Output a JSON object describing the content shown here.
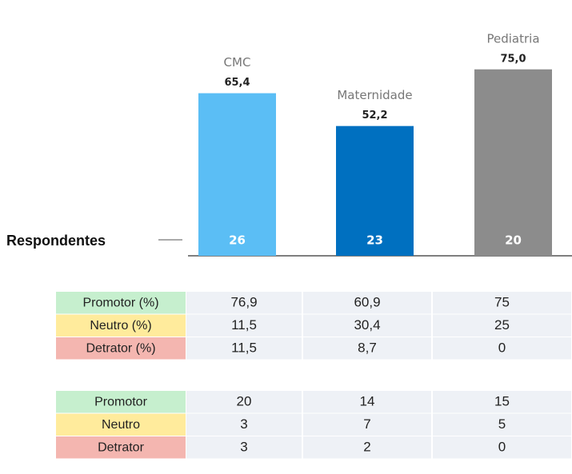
{
  "chart_data": {
    "type": "bar",
    "categories": [
      "CMC",
      "Maternidade",
      "Pediatria"
    ],
    "values": [
      65.4,
      52.2,
      75.0
    ],
    "value_labels": [
      "65,4",
      "52,2",
      "75,0"
    ],
    "colors": [
      "#5bbef5",
      "#0070c0",
      "#8c8c8c"
    ],
    "respondents": {
      "label": "Respondentes",
      "values": [
        26,
        23,
        20
      ]
    }
  },
  "table": {
    "sections": [
      {
        "rows": [
          {
            "label": "Promotor (%)",
            "values": [
              "76,9",
              "60,9",
              "75"
            ]
          },
          {
            "label": "Neutro (%)",
            "values": [
              "11,5",
              "30,4",
              "25"
            ]
          },
          {
            "label": "Detrator (%)",
            "values": [
              "11,5",
              "8,7",
              "0"
            ]
          }
        ]
      },
      {
        "rows": [
          {
            "label": "Promotor",
            "values": [
              "20",
              "14",
              "15"
            ]
          },
          {
            "label": "Neutro",
            "values": [
              "3",
              "7",
              "5"
            ]
          },
          {
            "label": "Detrator",
            "values": [
              "3",
              "2",
              "0"
            ]
          }
        ]
      }
    ]
  }
}
